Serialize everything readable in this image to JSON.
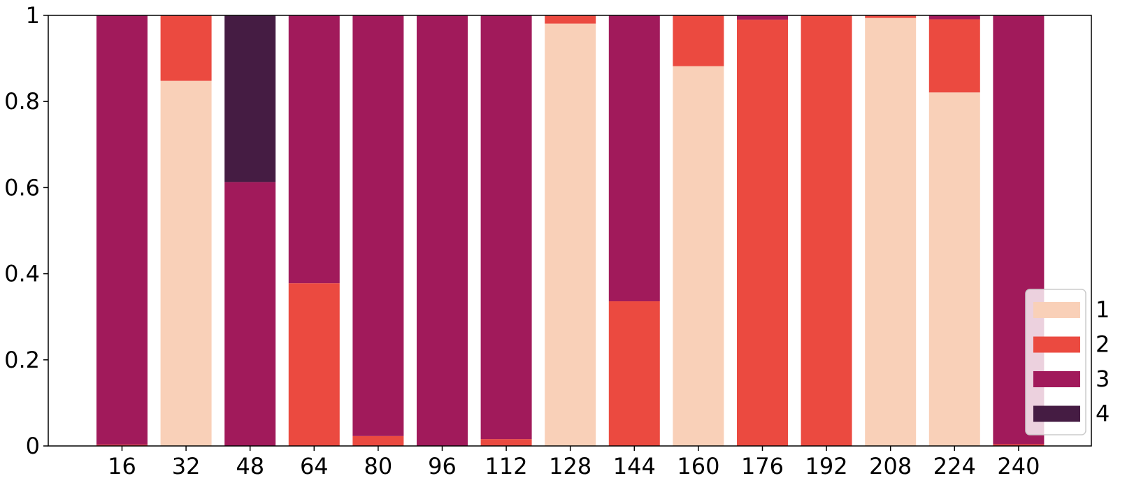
{
  "chart_data": {
    "type": "bar",
    "stacked": true,
    "categories": [
      "16",
      "32",
      "48",
      "64",
      "80",
      "96",
      "112",
      "128",
      "144",
      "160",
      "176",
      "192",
      "208",
      "224",
      "240"
    ],
    "series": [
      {
        "name": "1",
        "color": "#f9d0b8",
        "values": [
          0.0,
          0.848,
          0.0,
          0.0,
          0.0,
          0.0,
          0.0,
          0.981,
          0.0,
          0.882,
          0.0,
          0.0,
          0.994,
          0.821,
          0.0
        ]
      },
      {
        "name": "2",
        "color": "#eb4a40",
        "values": [
          0.003,
          0.152,
          0.0,
          0.378,
          0.023,
          0.0,
          0.016,
          0.019,
          0.336,
          0.118,
          0.99,
          1.0,
          0.006,
          0.17,
          0.004
        ]
      },
      {
        "name": "3",
        "color": "#a11a5b",
        "values": [
          0.997,
          0.0,
          0.613,
          0.622,
          0.977,
          1.0,
          0.984,
          0.0,
          0.664,
          0.0,
          0.01,
          0.0,
          0.0,
          0.009,
          0.996
        ]
      },
      {
        "name": "4",
        "color": "#451c43",
        "values": [
          0.0,
          0.0,
          0.387,
          0.0,
          0.0,
          0.0,
          0.0,
          0.0,
          0.0,
          0.0,
          0.0,
          0.0,
          0.0,
          0.0,
          0.0
        ]
      }
    ],
    "yticks": [
      "0",
      "0.2",
      "0.4",
      "0.6",
      "0.8",
      "1"
    ],
    "ylim": [
      0,
      1
    ],
    "xlabel": "",
    "ylabel": "",
    "grid": false,
    "legend": {
      "position": "bottom-right"
    }
  }
}
